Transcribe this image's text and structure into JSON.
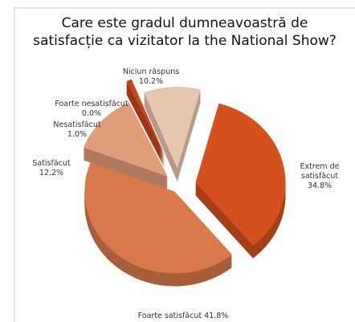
{
  "chart_data": {
    "type": "pie",
    "title": [
      "Care este gradul dumneavoastră de",
      "satisfacție ca vizitator la the National Show?"
    ],
    "categories": [
      "Extrem de satisfăcut",
      "Foarte satisfăcut",
      "Satisfăcut",
      "Nesatisfăcut",
      "Foarte nesatisfăcut",
      "Niciun răspuns"
    ],
    "values": [
      34.8,
      41.8,
      12.2,
      1.0,
      0.0,
      10.2
    ],
    "value_labels": [
      "34.8%",
      "41.8%",
      "12.2%",
      "1.0%",
      "0.0%",
      "10.2%"
    ],
    "colors": [
      "#d4511e",
      "#d9784b",
      "#e09d7a",
      "#c9451b",
      "#999999",
      "#e8c5ae"
    ]
  }
}
